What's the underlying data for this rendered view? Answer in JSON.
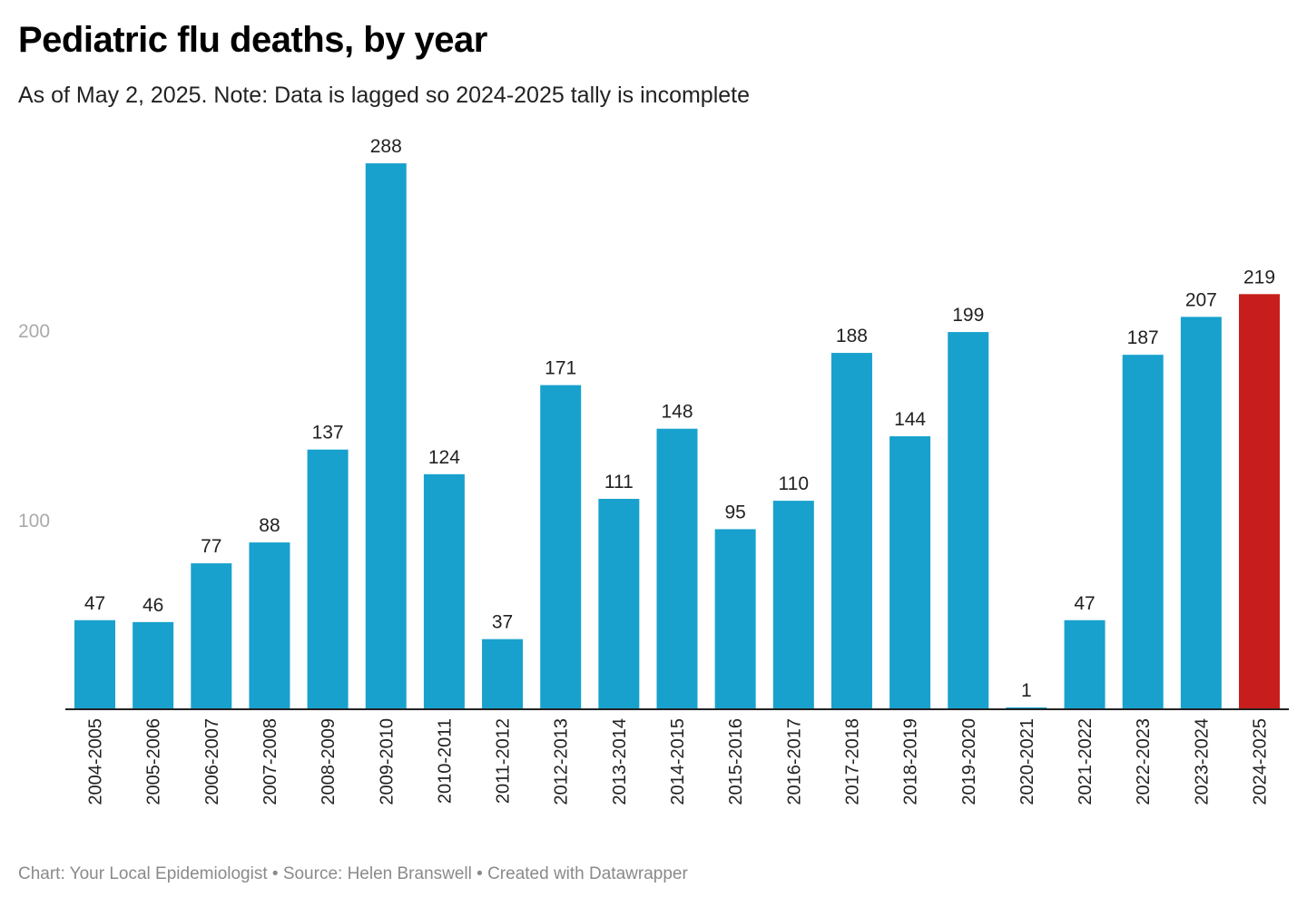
{
  "chart_data": {
    "type": "bar",
    "title": "Pediatric flu deaths, by year",
    "subtitle": "As of May 2, 2025. Note: Data is lagged so 2024-2025 tally is incomplete",
    "xlabel": "",
    "ylabel": "",
    "ylim": [
      0,
      300
    ],
    "yticks": [
      100,
      200
    ],
    "grid": false,
    "categories": [
      "2004-2005",
      "2005-2006",
      "2006-2007",
      "2007-2008",
      "2008-2009",
      "2009-2010",
      "2010-2011",
      "2011-2012",
      "2012-2013",
      "2013-2014",
      "2014-2015",
      "2015-2016",
      "2016-2017",
      "2017-2018",
      "2018-2019",
      "2019-2020",
      "2020-2021",
      "2021-2022",
      "2022-2023",
      "2023-2024",
      "2024-2025"
    ],
    "values": [
      47,
      46,
      77,
      88,
      137,
      288,
      124,
      37,
      171,
      111,
      148,
      95,
      110,
      188,
      144,
      199,
      1,
      47,
      187,
      207,
      219
    ],
    "colors": {
      "default": "#18a1cd",
      "highlight": "#c71e1d",
      "highlight_category": "2024-2025"
    }
  },
  "footer": "Chart: Your Local Epidemiologist • Source: Helen Branswell • Created with Datawrapper"
}
